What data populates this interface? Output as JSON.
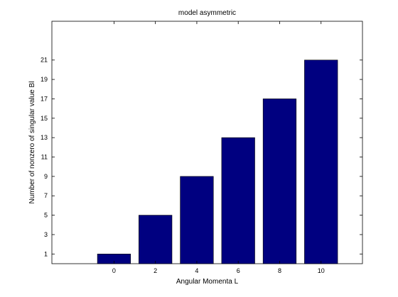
{
  "chart_data": {
    "type": "bar",
    "title": "model  asymmetric",
    "xlabel": "Angular Momenta L",
    "ylabel": "Number of nonzero of singular value Bl",
    "categories": [
      "0",
      "2",
      "4",
      "6",
      "8",
      "10"
    ],
    "x": [
      0,
      2,
      4,
      6,
      8,
      10
    ],
    "values": [
      1,
      5,
      9,
      13,
      17,
      21
    ],
    "xlim": [
      -3,
      12
    ],
    "ylim": [
      0,
      25
    ],
    "yticks": [
      1,
      3,
      5,
      7,
      9,
      11,
      13,
      15,
      17,
      19,
      21
    ],
    "bar_color": "#000080",
    "grid": false,
    "legend": "none"
  }
}
